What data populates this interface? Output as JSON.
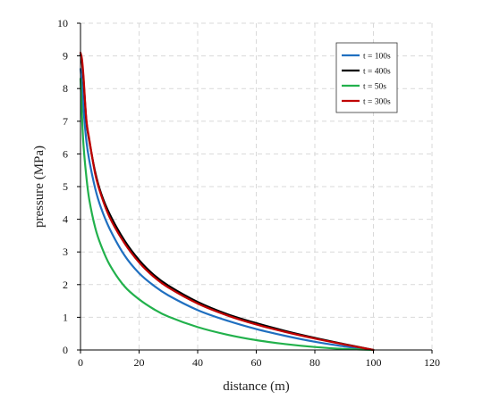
{
  "chart_data": {
    "type": "line",
    "title": "",
    "xlabel": "distance (m)",
    "ylabel": "pressure (MPa)",
    "xlim": [
      0,
      120
    ],
    "ylim": [
      0,
      10
    ],
    "xticks": [
      0,
      20,
      40,
      60,
      80,
      100,
      120
    ],
    "yticks": [
      0,
      1,
      2,
      3,
      4,
      5,
      6,
      7,
      8,
      9,
      10
    ],
    "grid": true,
    "legend_position": "top-right",
    "series": [
      {
        "name": "t = 100s",
        "color": "#1f6fc0",
        "x": [
          0,
          0.5,
          1,
          2,
          3,
          5,
          7,
          10,
          15,
          20,
          25,
          30,
          40,
          50,
          60,
          70,
          80,
          90,
          100
        ],
        "y": [
          8.6,
          8.1,
          7.4,
          6.4,
          5.8,
          4.95,
          4.35,
          3.7,
          2.9,
          2.35,
          1.97,
          1.67,
          1.22,
          0.9,
          0.64,
          0.43,
          0.25,
          0.11,
          0
        ]
      },
      {
        "name": "t = 400s",
        "color": "#000000",
        "x": [
          0,
          0.5,
          1,
          2,
          3,
          5,
          7,
          10,
          15,
          20,
          25,
          30,
          40,
          50,
          60,
          70,
          80,
          90,
          100
        ],
        "y": [
          9.05,
          8.8,
          8.3,
          7.0,
          6.4,
          5.45,
          4.8,
          4.15,
          3.35,
          2.75,
          2.3,
          1.97,
          1.47,
          1.1,
          0.82,
          0.58,
          0.37,
          0.18,
          0
        ]
      },
      {
        "name": "t = 50s",
        "color": "#22b14c",
        "x": [
          0,
          0.5,
          1,
          2,
          3,
          5,
          7,
          10,
          15,
          20,
          25,
          30,
          40,
          50,
          60,
          70,
          80,
          90,
          100
        ],
        "y": [
          8.3,
          7.2,
          6.3,
          5.3,
          4.6,
          3.75,
          3.2,
          2.6,
          1.95,
          1.55,
          1.25,
          1.02,
          0.7,
          0.47,
          0.3,
          0.18,
          0.09,
          0.03,
          0
        ]
      },
      {
        "name": "t = 300s",
        "color": "#c00000",
        "x": [
          0,
          0.5,
          1,
          2,
          3,
          5,
          7,
          10,
          15,
          20,
          25,
          30,
          40,
          50,
          60,
          70,
          80,
          90,
          100
        ],
        "y": [
          9.1,
          8.9,
          8.4,
          7.05,
          6.45,
          5.4,
          4.75,
          4.05,
          3.27,
          2.68,
          2.24,
          1.91,
          1.42,
          1.06,
          0.78,
          0.55,
          0.35,
          0.17,
          0
        ]
      }
    ]
  }
}
